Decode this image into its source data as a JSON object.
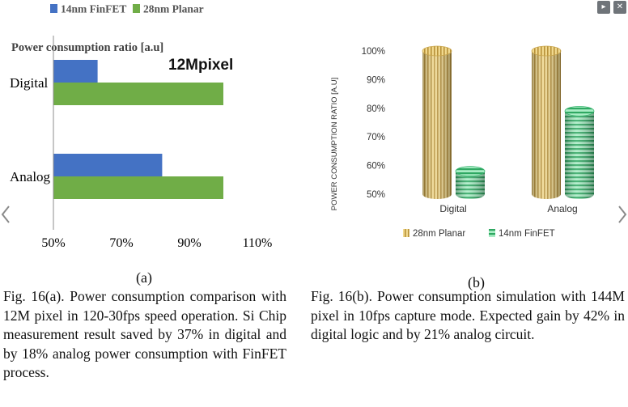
{
  "controls": {
    "play_glyph": "▸",
    "close_glyph": "✕"
  },
  "nav": {
    "prev_icon": "chevron-left-icon",
    "next_icon": "chevron-right-icon"
  },
  "chart_data": [
    {
      "type": "bar",
      "orientation": "horizontal",
      "title": "Power consumption ratio [a.u]",
      "annotation": "12Mpixel",
      "categories": [
        "Digital",
        "Analog"
      ],
      "series": [
        {
          "name": "14nm FinFET",
          "color": "#4472c4",
          "values": [
            63,
            82
          ]
        },
        {
          "name": "28nm Planar",
          "color": "#70ad47",
          "values": [
            100,
            100
          ]
        }
      ],
      "xlim": [
        50,
        110
      ],
      "ticks": [
        "50%",
        "70%",
        "90%",
        "110%"
      ],
      "tick_values": [
        50,
        70,
        90,
        110
      ],
      "legend_position": "top",
      "grid": false,
      "sub_label": "(a)"
    },
    {
      "type": "bar",
      "style": "3d-cylinder",
      "ylabel": "POWER CONSUMPTION RATIO [A.U]",
      "categories": [
        "Digital",
        "Analog"
      ],
      "series": [
        {
          "name": "28nm Planar",
          "color": "#e4c46a",
          "values": [
            100,
            100
          ]
        },
        {
          "name": "14nm FinFET",
          "color": "#5fc98f",
          "values": [
            58,
            79
          ]
        }
      ],
      "ylim": [
        50,
        100
      ],
      "ticks": [
        "50%",
        "60%",
        "70%",
        "80%",
        "90%",
        "100%"
      ],
      "tick_values": [
        50,
        60,
        70,
        80,
        90,
        100
      ],
      "legend_position": "bottom",
      "grid": false,
      "sub_label": "(b)"
    }
  ],
  "captions": {
    "a": "Fig. 16(a). Power consumption comparison with 12M pixel in 120-30fps speed operation. Si Chip measurement result saved by 37% in digital and by 18% analog power consumption with FinFET process.",
    "b": "Fig. 16(b). Power consumption simulation with 144M pixel in 10fps capture mode. Expected gain by 42% in digital logic and by 21% analog circuit."
  }
}
